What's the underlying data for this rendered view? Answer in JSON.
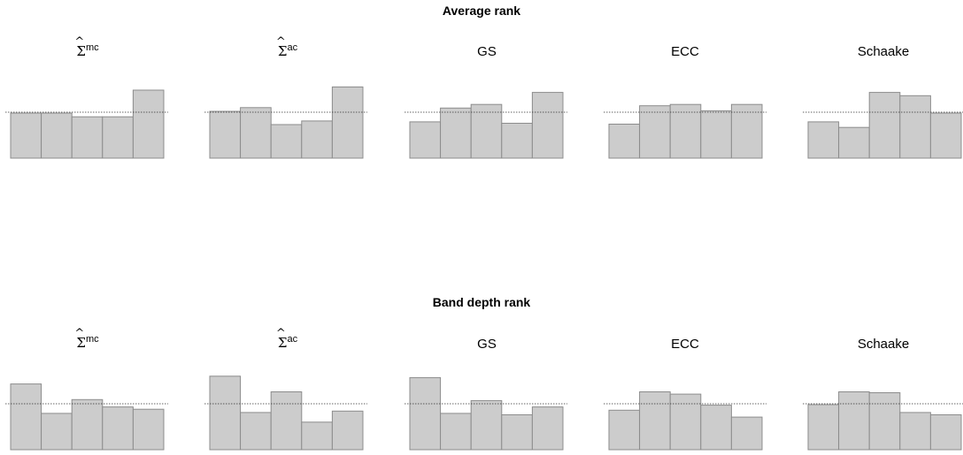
{
  "titles": {
    "average": "Average rank",
    "band": "Band depth rank"
  },
  "panel_titles": {
    "mc_sup": "mc",
    "ac_sup": "ac",
    "gs": "GS",
    "ecc": "ECC",
    "schaake": "Schaake"
  },
  "colors": {
    "bar_fill": "#cccccc",
    "bar_stroke": "#8c8c8c",
    "reference_line": "#333333"
  },
  "chart_data": [
    {
      "type": "bar",
      "row": "Average rank",
      "panel": "Σ̂mc",
      "categories": [
        "1",
        "2",
        "3",
        "4",
        "5"
      ],
      "values": [
        0.98,
        0.98,
        0.9,
        0.9,
        1.48
      ],
      "reference": 1.0,
      "ylim": [
        0,
        1.6
      ]
    },
    {
      "type": "bar",
      "row": "Average rank",
      "panel": "Σ̂ac",
      "categories": [
        "1",
        "2",
        "3",
        "4",
        "5"
      ],
      "values": [
        1.02,
        1.1,
        0.73,
        0.81,
        1.55
      ],
      "reference": 1.0,
      "ylim": [
        0,
        1.6
      ]
    },
    {
      "type": "bar",
      "row": "Average rank",
      "panel": "GS",
      "categories": [
        "1",
        "2",
        "3",
        "4",
        "5"
      ],
      "values": [
        0.79,
        1.09,
        1.17,
        0.76,
        1.43
      ],
      "reference": 1.0,
      "ylim": [
        0,
        1.6
      ]
    },
    {
      "type": "bar",
      "row": "Average rank",
      "panel": "ECC",
      "categories": [
        "1",
        "2",
        "3",
        "4",
        "5"
      ],
      "values": [
        0.74,
        1.14,
        1.17,
        1.03,
        1.17
      ],
      "reference": 1.0,
      "ylim": [
        0,
        1.6
      ]
    },
    {
      "type": "bar",
      "row": "Average rank",
      "panel": "Schaake",
      "categories": [
        "1",
        "2",
        "3",
        "4",
        "5"
      ],
      "values": [
        0.79,
        0.67,
        1.43,
        1.36,
        0.98
      ],
      "reference": 1.0,
      "ylim": [
        0,
        1.6
      ]
    },
    {
      "type": "bar",
      "row": "Band depth rank",
      "panel": "Σ̂mc",
      "categories": [
        "1",
        "2",
        "3",
        "4",
        "5"
      ],
      "values": [
        1.43,
        0.79,
        1.09,
        0.93,
        0.88
      ],
      "reference": 1.0,
      "ylim": [
        0,
        1.6
      ]
    },
    {
      "type": "bar",
      "row": "Band depth rank",
      "panel": "Σ̂ac",
      "categories": [
        "1",
        "2",
        "3",
        "4",
        "5"
      ],
      "values": [
        1.6,
        0.81,
        1.26,
        0.6,
        0.84
      ],
      "reference": 1.0,
      "ylim": [
        0,
        1.6
      ]
    },
    {
      "type": "bar",
      "row": "Band depth rank",
      "panel": "GS",
      "categories": [
        "1",
        "2",
        "3",
        "4",
        "5"
      ],
      "values": [
        1.57,
        0.79,
        1.07,
        0.76,
        0.93
      ],
      "reference": 1.0,
      "ylim": [
        0,
        1.6
      ]
    },
    {
      "type": "bar",
      "row": "Band depth rank",
      "panel": "ECC",
      "categories": [
        "1",
        "2",
        "3",
        "4",
        "5"
      ],
      "values": [
        0.86,
        1.26,
        1.21,
        0.97,
        0.71
      ],
      "reference": 1.0,
      "ylim": [
        0,
        1.6
      ]
    },
    {
      "type": "bar",
      "row": "Band depth rank",
      "panel": "Schaake",
      "categories": [
        "1",
        "2",
        "3",
        "4",
        "5"
      ],
      "values": [
        0.98,
        1.26,
        1.24,
        0.81,
        0.76
      ],
      "reference": 1.0,
      "ylim": [
        0,
        1.6
      ]
    }
  ]
}
